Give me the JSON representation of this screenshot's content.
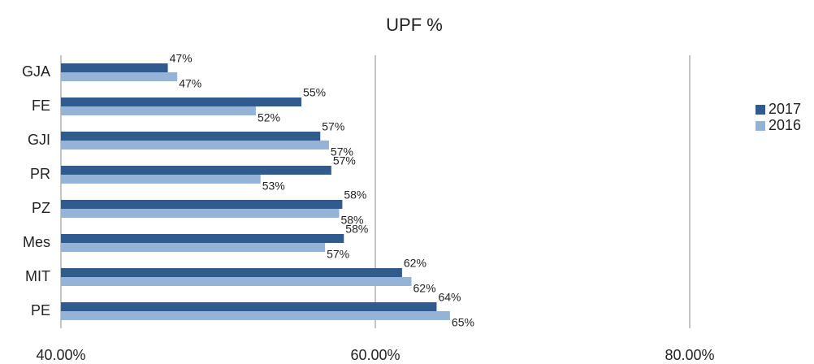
{
  "chart_data": {
    "type": "hbar",
    "title": "UPF %",
    "categories": [
      "GJA",
      "FE",
      "GJI",
      "PR",
      "PZ",
      "Mes",
      "MIT",
      "PE"
    ],
    "series": [
      {
        "name": "2017",
        "color": "#2f5b8e",
        "values": [
          46.8,
          55.3,
          56.5,
          57.2,
          57.9,
          58.0,
          61.7,
          63.9
        ],
        "value_labels": [
          "47%",
          "55%",
          "57%",
          "57%",
          "58%",
          "58%",
          "62%",
          "64%"
        ]
      },
      {
        "name": "2016",
        "color": "#95b3d7",
        "values": [
          47.4,
          52.4,
          57.05,
          52.7,
          57.7,
          56.8,
          62.3,
          64.75
        ],
        "value_labels": [
          "47%",
          "52%",
          "57%",
          "53%",
          "58%",
          "57%",
          "62%",
          "65%"
        ]
      }
    ],
    "xlim": [
      40,
      80
    ],
    "xticks": [
      {
        "value": 40,
        "label": "40.00%"
      },
      {
        "value": 60,
        "label": "60.00%"
      },
      {
        "value": 80,
        "label": "80.00%"
      }
    ],
    "grid": true,
    "legend": "right"
  }
}
